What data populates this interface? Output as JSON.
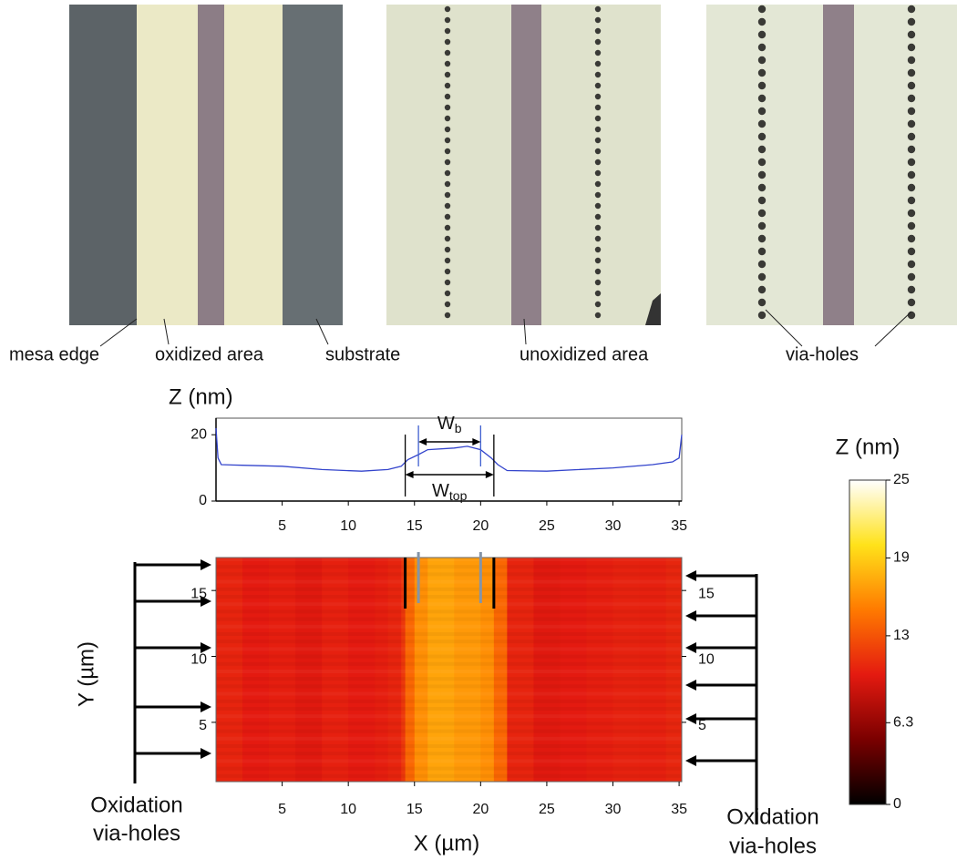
{
  "photos": {
    "labels": [
      "mesa edge",
      "oxidized area",
      "substrate",
      "unoxidized area",
      "via-holes"
    ]
  },
  "chart_data": [
    {
      "type": "line",
      "ylabel": "Z (nm)",
      "x": [
        0,
        0.15,
        0.4,
        2,
        5,
        8,
        11,
        13,
        14,
        14.5,
        15.3,
        16,
        18,
        19,
        20,
        20.8,
        21.3,
        22,
        25,
        30,
        33,
        34.5,
        35,
        35.2
      ],
      "values": [
        22,
        13,
        11,
        10.8,
        10.5,
        9.5,
        9,
        9.5,
        10.5,
        12.5,
        14,
        15.5,
        16,
        16.5,
        15.5,
        13,
        11,
        9.2,
        9,
        10,
        11,
        11.8,
        13,
        20
      ],
      "color": "#3344cc",
      "xlim": [
        0,
        35.2
      ],
      "ylim": [
        0,
        25
      ],
      "xticks": [
        5,
        10,
        15,
        20,
        25,
        30,
        35
      ],
      "yticks": [
        0,
        20
      ],
      "markers": {
        "w_b": {
          "label": "W",
          "sub": "b",
          "from": 15.3,
          "to": 20
        },
        "w_top": {
          "label": "W",
          "sub": "top",
          "from": 14.3,
          "to": 21
        }
      }
    },
    {
      "type": "heatmap",
      "xlabel": "X (µm)",
      "ylabel": "Y (µm)",
      "x_edges": [
        0,
        2,
        4,
        6,
        8,
        10,
        12,
        13,
        14,
        14.3,
        15,
        16,
        17,
        18,
        19,
        20,
        21,
        22,
        24,
        26,
        28,
        30,
        32,
        34,
        35.2
      ],
      "values": [
        10.5,
        10,
        10.2,
        9.8,
        10.3,
        10,
        10.2,
        10.5,
        11.5,
        14,
        16,
        17,
        17,
        16.5,
        16.5,
        16,
        14,
        10.5,
        9.8,
        10,
        10.2,
        10.4,
        10.3,
        10.6
      ],
      "xlim": [
        0,
        35.2
      ],
      "ylim": [
        0.5,
        17.5
      ],
      "xticks": [
        5,
        10,
        15,
        20,
        25,
        30,
        35
      ],
      "yticks": [
        5,
        10,
        15
      ],
      "annotations": [
        [
          "Oxidation",
          "via-holes"
        ],
        [
          "Oxidation",
          "via-holes"
        ]
      ],
      "colorbar_label": "Z (nm)",
      "zlim": [
        0,
        25
      ],
      "zticks": [
        0,
        6.3,
        13,
        19,
        25
      ],
      "colormap": [
        "#000000",
        "#7a0000",
        "#e41a10",
        "#ff7a00",
        "#ffe21a",
        "#ffffff"
      ]
    }
  ]
}
